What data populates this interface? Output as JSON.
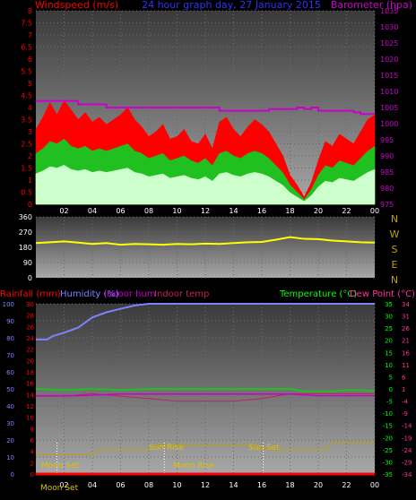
{
  "wind_panel": {
    "left_label": "Windspeed (m/s)",
    "title": "24 hour graph day, 27 January 2015",
    "right_label": "Barometer (hpa)"
  },
  "direction_panel": {
    "compass_letters": [
      "N",
      "W",
      "S",
      "E",
      "N"
    ]
  },
  "temp_panel": {
    "labels": {
      "rainfall": "Rainfall (mm)",
      "humidity": "Humidity (%)",
      "indoor_hum": "Indoor hum",
      "indoor_temp": "Indoor temp",
      "temperature": "Temperature (°C)",
      "dew_point": "Dew Point (°C)"
    },
    "astro_labels": {
      "moon_set": "Moon Set",
      "moon_rise": "Moon Rise",
      "sun_rise": "Sun Rise",
      "sun_set": "Sun Set",
      "moon_set_bottom": "Moon Set"
    }
  },
  "colors": {
    "background": "#000000",
    "plot_bg_top": "#3a3a3a",
    "plot_bg_bottom": "#a8a8a8",
    "red": "#ff0000",
    "green": "#20c020",
    "pale_green": "#ccffcc",
    "barometer": "#cc00cc",
    "wind_dir": "#ffff00",
    "humidity": "#8080ff",
    "indoor_temp": "#c02060",
    "sun": "#c0a000",
    "title_blue": "#3030ff",
    "axis_green": "#00ff00"
  },
  "chart_data": [
    {
      "type": "line",
      "panel": "wind",
      "title": "24 hour graph day, 27 January 2015",
      "xlabel": "",
      "x_ticks": [
        "02",
        "04",
        "06",
        "08",
        "10",
        "12",
        "14",
        "16",
        "18",
        "20",
        "22",
        "00"
      ],
      "y_left": {
        "label": "Windspeed (m/s)",
        "range": [
          0,
          8
        ],
        "ticks": [
          "0",
          "0.5",
          "1",
          "1.5",
          "2",
          "2.5",
          "3",
          "3.5",
          "4",
          "4.5",
          "5",
          "5.5",
          "6",
          "6.5",
          "7",
          "7.5",
          "8"
        ]
      },
      "y_right": {
        "label": "Barometer (hpa)",
        "range": [
          975,
          1035
        ],
        "ticks": [
          "975",
          "980",
          "985",
          "990",
          "995",
          "1000",
          "1005",
          "1010",
          "1015",
          "1020",
          "1025",
          "1030",
          "1035"
        ]
      },
      "series": [
        {
          "name": "gust",
          "x": [
            0,
            0.5,
            1,
            1.5,
            2,
            2.5,
            3,
            3.5,
            4,
            4.5,
            5,
            5.5,
            6,
            6.5,
            7,
            7.5,
            8,
            8.5,
            9,
            9.5,
            10,
            10.5,
            11,
            11.5,
            12,
            12.5,
            13,
            13.5,
            14,
            14.5,
            15,
            15.5,
            16,
            16.5,
            17,
            17.5,
            18,
            18.5,
            19,
            19.5,
            20,
            20.5,
            21,
            21.5,
            22,
            22.5,
            23,
            23.5,
            24
          ],
          "values": [
            3.1,
            3.6,
            4.2,
            3.7,
            4.3,
            3.9,
            3.5,
            3.8,
            3.4,
            3.6,
            3.3,
            3.5,
            3.7,
            4.0,
            3.5,
            3.2,
            2.8,
            3.0,
            3.3,
            2.7,
            2.8,
            3.1,
            2.6,
            2.5,
            2.9,
            2.3,
            3.4,
            3.6,
            3.1,
            2.8,
            3.2,
            3.5,
            3.3,
            3.0,
            2.5,
            2.0,
            1.2,
            0.8,
            0.3,
            0.9,
            1.8,
            2.6,
            2.4,
            2.9,
            2.7,
            2.5,
            3.0,
            3.5,
            3.7
          ]
        },
        {
          "name": "average",
          "x": [
            0,
            0.5,
            1,
            1.5,
            2,
            2.5,
            3,
            3.5,
            4,
            4.5,
            5,
            5.5,
            6,
            6.5,
            7,
            7.5,
            8,
            8.5,
            9,
            9.5,
            10,
            10.5,
            11,
            11.5,
            12,
            12.5,
            13,
            13.5,
            14,
            14.5,
            15,
            15.5,
            16,
            16.5,
            17,
            17.5,
            18,
            18.5,
            19,
            19.5,
            20,
            20.5,
            21,
            21.5,
            22,
            22.5,
            23,
            23.5,
            24
          ],
          "values": [
            2.1,
            2.3,
            2.6,
            2.5,
            2.7,
            2.4,
            2.3,
            2.4,
            2.2,
            2.3,
            2.2,
            2.3,
            2.4,
            2.5,
            2.2,
            2.1,
            1.9,
            2.0,
            2.1,
            1.8,
            1.9,
            2.0,
            1.8,
            1.7,
            1.9,
            1.6,
            2.1,
            2.2,
            2.0,
            1.9,
            2.1,
            2.2,
            2.1,
            1.9,
            1.6,
            1.3,
            0.8,
            0.5,
            0.2,
            0.6,
            1.2,
            1.6,
            1.5,
            1.8,
            1.7,
            1.6,
            1.9,
            2.2,
            2.4
          ]
        },
        {
          "name": "barometer",
          "x": [
            0,
            2.5,
            3,
            4.5,
            5,
            9,
            10,
            12,
            13,
            16,
            16.5,
            17,
            17.5,
            18,
            18.5,
            19,
            19.5,
            20,
            21,
            22,
            22.5,
            23,
            23.5,
            24
          ],
          "values": [
            1007,
            1007,
            1006,
            1006,
            1005,
            1005,
            1005,
            1005,
            1004,
            1004,
            1004.5,
            1004.5,
            1004.5,
            1004.5,
            1005,
            1004.5,
            1005,
            1004,
            1004,
            1004,
            1003.5,
            1003,
            1003,
            1003
          ]
        }
      ]
    },
    {
      "type": "line",
      "panel": "wind_direction",
      "x_ticks": [
        "02",
        "04",
        "06",
        "08",
        "10",
        "12",
        "14",
        "16",
        "18",
        "20",
        "22",
        "00"
      ],
      "y": {
        "range": [
          0,
          360
        ],
        "ticks": [
          "0",
          "90",
          "180",
          "270",
          "360"
        ]
      },
      "series": [
        {
          "name": "direction",
          "x": [
            0,
            1,
            2,
            3,
            4,
            5,
            6,
            7,
            8,
            9,
            10,
            11,
            12,
            13,
            14,
            15,
            16,
            17,
            18,
            19,
            20,
            21,
            22,
            23,
            24
          ],
          "values": [
            205,
            210,
            215,
            208,
            200,
            205,
            195,
            200,
            198,
            195,
            200,
            198,
            202,
            200,
            205,
            210,
            212,
            225,
            240,
            230,
            228,
            220,
            215,
            210,
            208
          ]
        }
      ]
    },
    {
      "type": "line",
      "panel": "temperature",
      "x_ticks": [
        "02",
        "04",
        "06",
        "08",
        "10",
        "12",
        "14",
        "16",
        "18",
        "20",
        "22",
        "00"
      ],
      "y_left_rain": {
        "label": "Rainfall (mm)",
        "range": [
          0,
          30
        ],
        "ticks": [
          "0",
          "2",
          "4",
          "6",
          "8",
          "10",
          "12",
          "14",
          "16",
          "18",
          "20",
          "22",
          "24",
          "26",
          "28",
          "30"
        ]
      },
      "y_left_hum": {
        "label": "Humidity (%)",
        "range": [
          0,
          100
        ],
        "ticks": [
          "0",
          "10",
          "20",
          "30",
          "40",
          "50",
          "60",
          "70",
          "80",
          "90",
          "100"
        ]
      },
      "y_temp": {
        "label": "Temperature (°C)",
        "range": [
          -35,
          35
        ],
        "ticks": [
          "-35",
          "-30",
          "-25",
          "-20",
          "-15",
          "-10",
          "-5",
          "0",
          "5",
          "10",
          "15",
          "20",
          "25",
          "30",
          "35"
        ]
      },
      "y_dew": {
        "label": "Dew Point (°C)",
        "range": [
          -35,
          35
        ],
        "ticks": [
          "-34",
          "-29",
          "-24",
          "-19",
          "-14",
          "-9",
          "-4",
          "1",
          "6",
          "11",
          "16",
          "21",
          "26",
          "31",
          "34"
        ]
      },
      "series": [
        {
          "name": "Humidity",
          "x": [
            0,
            0.8,
            1.2,
            2,
            3,
            4,
            5,
            6,
            7,
            8,
            9,
            12,
            16,
            20,
            24
          ],
          "values": [
            79,
            79,
            81,
            83,
            86,
            92,
            95,
            97,
            99,
            100,
            100,
            100,
            100,
            100,
            100
          ]
        },
        {
          "name": "Temperature",
          "x": [
            0,
            2,
            4,
            6,
            8,
            10,
            12,
            14,
            16,
            18,
            19,
            20,
            21,
            22,
            23,
            24
          ],
          "values": [
            0,
            -0.5,
            0,
            -0.5,
            0,
            0,
            0,
            0,
            0,
            0,
            -1,
            -1,
            -1,
            -0.5,
            -0.5,
            -1
          ]
        },
        {
          "name": "Indoor hum",
          "x": [
            0,
            3,
            6,
            9,
            12,
            15,
            18,
            20,
            22,
            24
          ],
          "values": [
            46,
            46,
            47,
            47,
            47,
            47,
            47,
            46,
            46,
            46
          ]
        },
        {
          "name": "Indoor temp",
          "x": [
            0,
            2,
            4,
            6,
            8,
            10,
            12,
            14,
            16,
            18,
            20,
            22,
            24
          ],
          "values": [
            -3,
            -3,
            -2,
            -3,
            -4,
            -5,
            -5,
            -5,
            -4,
            -2,
            -2,
            -2,
            -2
          ]
        },
        {
          "name": "Rainfall",
          "x": [
            0,
            24
          ],
          "values": [
            0,
            0
          ]
        },
        {
          "name": "sun_elevation",
          "x": [
            0,
            4,
            4.5,
            8,
            8.5,
            15.5,
            16,
            20.5,
            21,
            24
          ],
          "values": [
            -27,
            -27,
            -25,
            -25,
            -23,
            -23,
            -25,
            -25,
            -22,
            -22
          ]
        }
      ]
    }
  ]
}
